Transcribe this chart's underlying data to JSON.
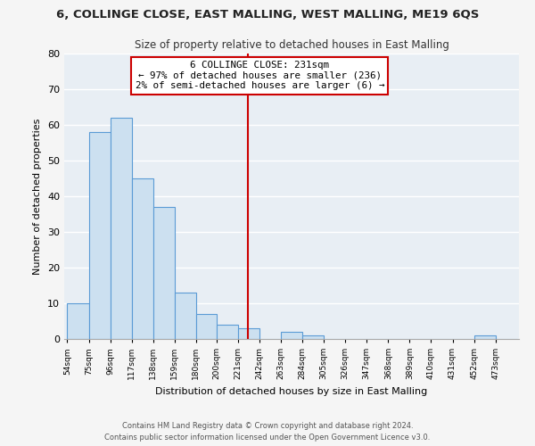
{
  "title": "6, COLLINGE CLOSE, EAST MALLING, WEST MALLING, ME19 6QS",
  "subtitle": "Size of property relative to detached houses in East Malling",
  "xlabel": "Distribution of detached houses by size in East Malling",
  "ylabel": "Number of detached properties",
  "bar_color": "#cce0f0",
  "bar_edge_color": "#5b9bd5",
  "axes_bg_color": "#e8eef4",
  "fig_bg_color": "#f5f5f5",
  "grid_color": "#ffffff",
  "bin_labels": [
    "54sqm",
    "75sqm",
    "96sqm",
    "117sqm",
    "138sqm",
    "159sqm",
    "180sqm",
    "200sqm",
    "221sqm",
    "242sqm",
    "263sqm",
    "284sqm",
    "305sqm",
    "326sqm",
    "347sqm",
    "368sqm",
    "389sqm",
    "410sqm",
    "431sqm",
    "452sqm",
    "473sqm"
  ],
  "bin_edges": [
    54,
    75,
    96,
    117,
    138,
    159,
    180,
    200,
    221,
    242,
    263,
    284,
    305,
    326,
    347,
    368,
    389,
    410,
    431,
    452,
    473
  ],
  "counts": [
    10,
    58,
    62,
    45,
    37,
    13,
    7,
    4,
    3,
    0,
    2,
    1,
    0,
    0,
    0,
    0,
    0,
    0,
    0,
    1,
    0
  ],
  "vline_x": 231,
  "vline_color": "#cc0000",
  "annotation_title": "6 COLLINGE CLOSE: 231sqm",
  "annotation_line1": "← 97% of detached houses are smaller (236)",
  "annotation_line2": "2% of semi-detached houses are larger (6) →",
  "annotation_box_color": "#ffffff",
  "annotation_box_edge": "#cc0000",
  "ylim": [
    0,
    80
  ],
  "yticks": [
    0,
    10,
    20,
    30,
    40,
    50,
    60,
    70,
    80
  ],
  "footer_line1": "Contains HM Land Registry data © Crown copyright and database right 2024.",
  "footer_line2": "Contains public sector information licensed under the Open Government Licence v3.0."
}
